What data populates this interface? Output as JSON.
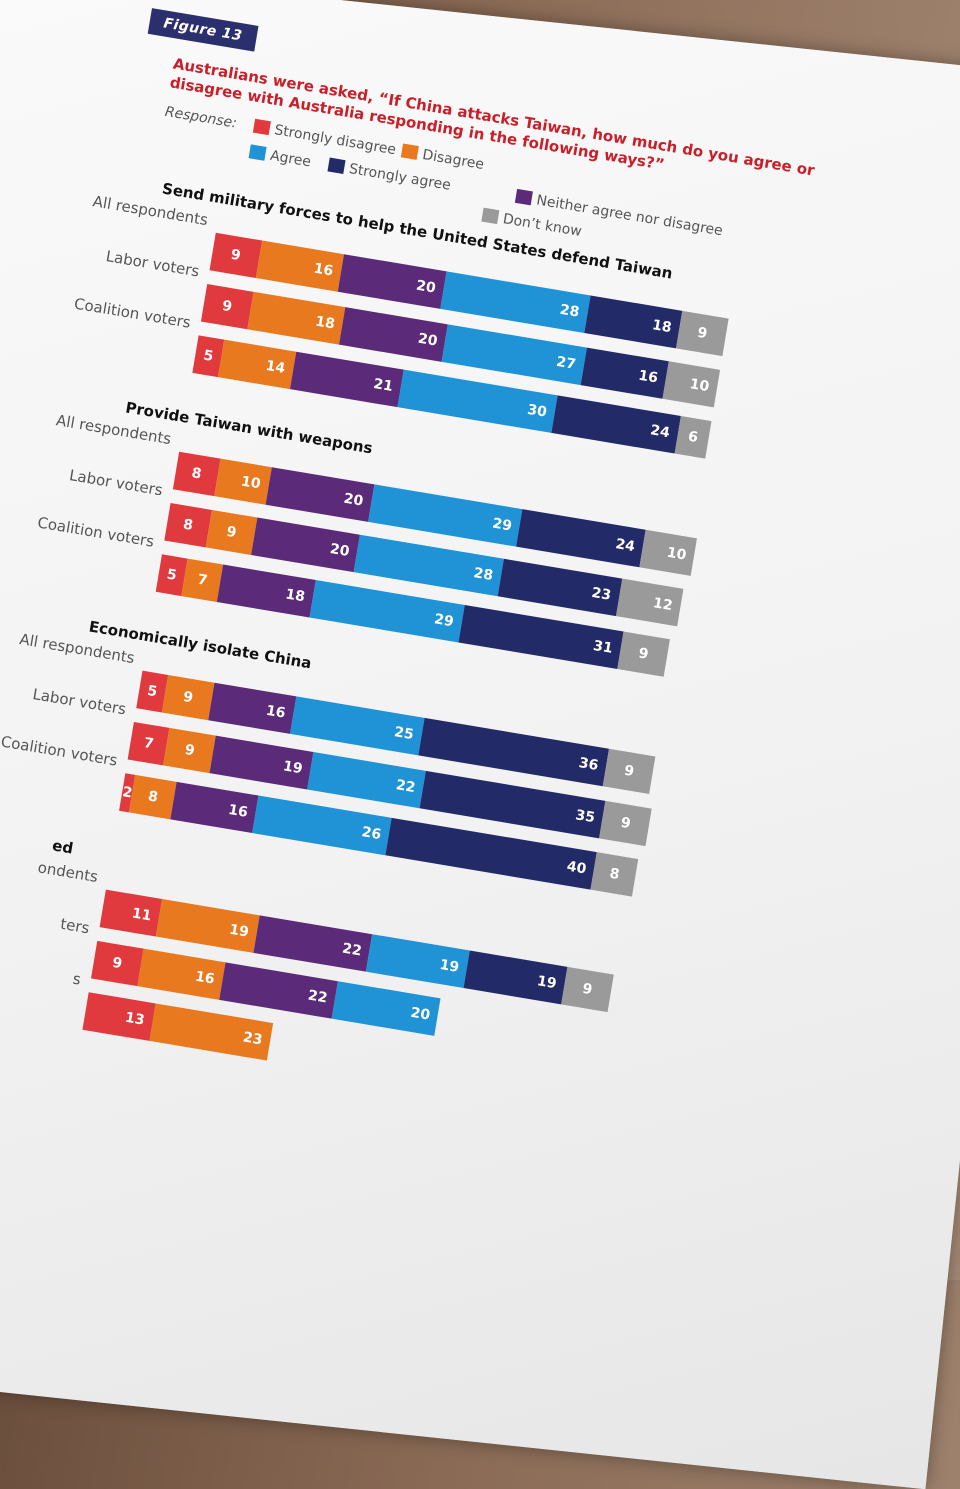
{
  "figure_label": "Figure 13",
  "chart_data": {
    "type": "bar",
    "orientation": "horizontal-stacked-100",
    "title": "Australians were asked, “If China attacks Taiwan, how much do you agree or disagree with Australia responding in the following ways?”",
    "legend_caption": "Response:",
    "legend": [
      {
        "name": "Strongly disagree",
        "color": "#e03a3e"
      },
      {
        "name": "Disagree",
        "color": "#e8791f"
      },
      {
        "name": "Agree",
        "color": "#1f93d6"
      },
      {
        "name": "Strongly agree",
        "color": "#232a68"
      },
      {
        "name": "Neither agree nor disagree",
        "color": "#5b2a78"
      },
      {
        "name": "Don’t know",
        "color": "#9a9a9a"
      }
    ],
    "segment_order": [
      "Strongly disagree",
      "Disagree",
      "Neither agree nor disagree",
      "Agree",
      "Strongly agree",
      "Don’t know"
    ],
    "segment_colors": [
      "#e03a3e",
      "#e8791f",
      "#5b2a78",
      "#1f93d6",
      "#232a68",
      "#9a9a9a"
    ],
    "groups": [
      {
        "title": "Send military forces to help the United States defend Taiwan",
        "rows": [
          {
            "label": "All respondents",
            "values": [
              9,
              16,
              20,
              28,
              18,
              9
            ]
          },
          {
            "label": "Labor voters",
            "values": [
              9,
              18,
              20,
              27,
              16,
              10
            ]
          },
          {
            "label": "Coalition voters",
            "values": [
              5,
              14,
              21,
              30,
              24,
              6
            ]
          }
        ]
      },
      {
        "title": "Provide Taiwan with weapons",
        "rows": [
          {
            "label": "All respondents",
            "values": [
              8,
              10,
              20,
              29,
              24,
              10
            ]
          },
          {
            "label": "Labor voters",
            "values": [
              8,
              9,
              20,
              28,
              23,
              12
            ]
          },
          {
            "label": "Coalition voters",
            "values": [
              5,
              7,
              18,
              29,
              31,
              9
            ]
          }
        ]
      },
      {
        "title": "Economically isolate China",
        "rows": [
          {
            "label": "All respondents",
            "values": [
              5,
              9,
              16,
              25,
              36,
              9
            ]
          },
          {
            "label": "Labor voters",
            "values": [
              7,
              9,
              19,
              22,
              35,
              9
            ]
          },
          {
            "label": "Coalition voters",
            "values": [
              2,
              8,
              16,
              26,
              40,
              8
            ]
          }
        ]
      },
      {
        "title": "ed",
        "rows": [
          {
            "label": "ondents",
            "values": [
              11,
              19,
              22,
              19,
              19,
              9
            ]
          },
          {
            "label": "ters",
            "values": [
              9,
              16,
              22,
              20,
              null,
              null
            ]
          },
          {
            "label": "s",
            "values": [
              13,
              23,
              null,
              null,
              null,
              null
            ]
          }
        ]
      }
    ]
  }
}
